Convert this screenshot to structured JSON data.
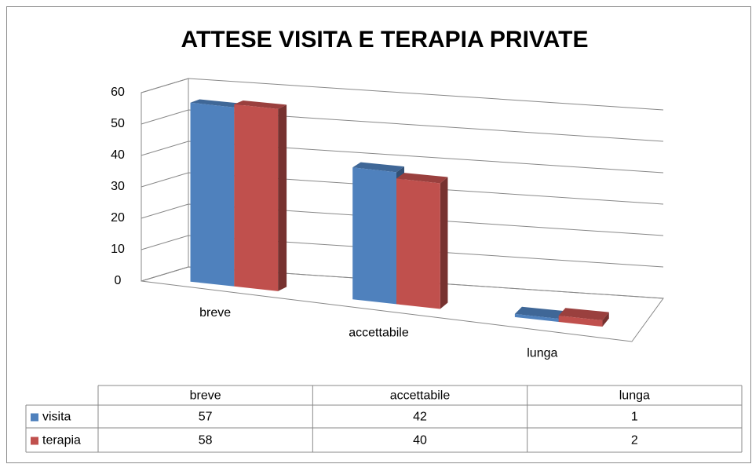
{
  "chart_data": {
    "type": "bar3d",
    "title": "ATTESE VISITA E TERAPIA PRIVATE",
    "categories": [
      "breve",
      "accettabile",
      "lunga"
    ],
    "series": [
      {
        "name": "visita",
        "color": "#4f81bd",
        "values": [
          57,
          42,
          1
        ]
      },
      {
        "name": "terapia",
        "color": "#c0504d",
        "values": [
          58,
          40,
          2
        ]
      }
    ],
    "ylim": [
      0,
      60
    ],
    "yticks": [
      0,
      10,
      20,
      30,
      40,
      50,
      60
    ],
    "grid": true,
    "data_table": true
  }
}
